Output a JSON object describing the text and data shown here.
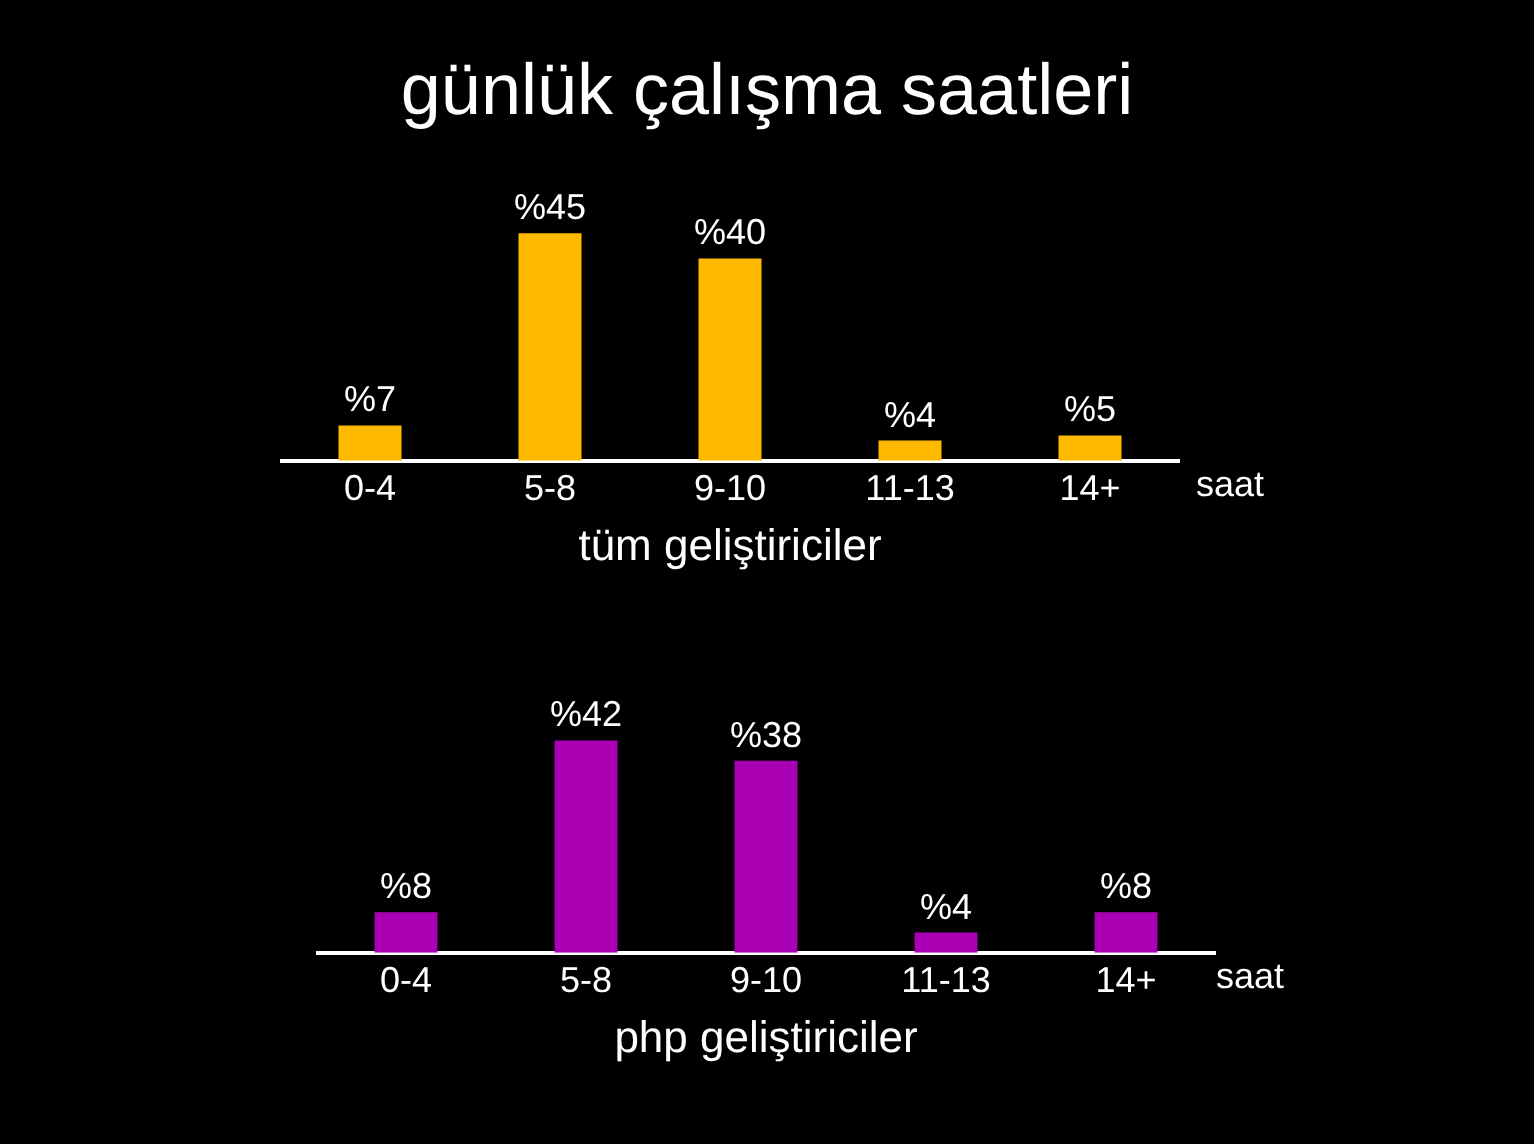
{
  "chart_data": [
    {
      "type": "bar",
      "title": "günlük çalışma saatleri",
      "categories": [
        "0-4",
        "5-8",
        "9-10",
        "11-13",
        "14+"
      ],
      "values": [
        7,
        45,
        40,
        4,
        5
      ],
      "color": "#ffba00",
      "value_labels": [
        "%7",
        "%45",
        "%40",
        "%4",
        "%5"
      ],
      "xlabel": "tüm geliştiriciler",
      "annotations": [
        "saat"
      ],
      "grid": false,
      "legend": false
    },
    {
      "type": "bar",
      "categories": [
        "0-4",
        "5-8",
        "9-10",
        "11-13",
        "14+"
      ],
      "values": [
        8,
        42,
        38,
        4,
        8
      ],
      "color": "#aa00b4",
      "value_labels": [
        "%8",
        "%42",
        "%38",
        "%4",
        "%8"
      ],
      "xlabel": "php geliştiriciler",
      "annotations": [
        "saat"
      ],
      "grid": false,
      "legend": false
    }
  ]
}
